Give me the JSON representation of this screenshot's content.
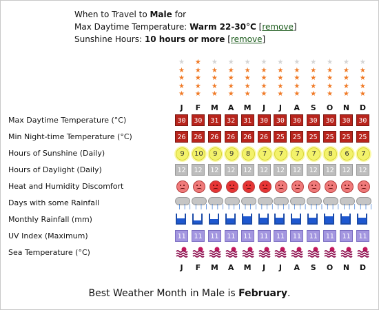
{
  "header": {
    "line1_prefix": "When to Travel to ",
    "city": "Male",
    "line1_suffix": " for",
    "temp_label": "Max Daytime Temperature: ",
    "temp_value": "Warm 22-30°C",
    "temp_remove": "remove",
    "sun_label": "Sunshine Hours: ",
    "sun_value": "10 hours or more",
    "sun_remove": "remove"
  },
  "months": [
    "J",
    "F",
    "M",
    "A",
    "M",
    "J",
    "J",
    "A",
    "S",
    "O",
    "N",
    "D"
  ],
  "ratings": [
    4,
    5,
    4,
    4,
    4,
    4,
    4,
    4,
    4,
    4,
    4,
    4
  ],
  "rows": {
    "max_temp": {
      "label": "Max Daytime Temperature (°C)",
      "values": [
        "30",
        "30",
        "31",
        "32",
        "31",
        "30",
        "30",
        "30",
        "30",
        "30",
        "30",
        "30"
      ]
    },
    "min_temp": {
      "label": "Min Night-time Temperature (°C)",
      "values": [
        "26",
        "26",
        "26",
        "26",
        "26",
        "26",
        "25",
        "25",
        "25",
        "25",
        "25",
        "25"
      ]
    },
    "sunshine": {
      "label": "Hours of Sunshine (Daily)",
      "values": [
        "9",
        "10",
        "9",
        "9",
        "8",
        "7",
        "7",
        "7",
        "7",
        "8",
        "6",
        "7"
      ]
    },
    "daylight": {
      "label": "Hours of Daylight (Daily)",
      "values": [
        "12",
        "12",
        "12",
        "12",
        "12",
        "12",
        "12",
        "12",
        "12",
        "12",
        "12",
        "12"
      ]
    },
    "discomfort": {
      "label": "Heat and Humidity Discomfort",
      "values": [
        "light",
        "light",
        "strong",
        "strong",
        "strong",
        "strong",
        "light",
        "light",
        "light",
        "light",
        "light",
        "light"
      ]
    },
    "rain_days": {
      "label": "Days with some Rainfall"
    },
    "monthly_rain": {
      "label": "Monthly Rainfall (mm)",
      "levels": [
        0.5,
        0.3,
        0.4,
        0.5,
        0.7,
        0.6,
        0.6,
        0.5,
        0.6,
        0.7,
        0.7,
        0.6
      ]
    },
    "uv": {
      "label": "UV Index (Maximum)",
      "values": [
        "11",
        "11",
        "11",
        "11",
        "11",
        "11",
        "11",
        "11",
        "11",
        "11",
        "11",
        "11"
      ]
    },
    "sea_temp": {
      "label": "Sea Temperature (°C)"
    }
  },
  "footer": {
    "prefix": "Best Weather Month in Male is ",
    "month": "February",
    "suffix": "."
  }
}
